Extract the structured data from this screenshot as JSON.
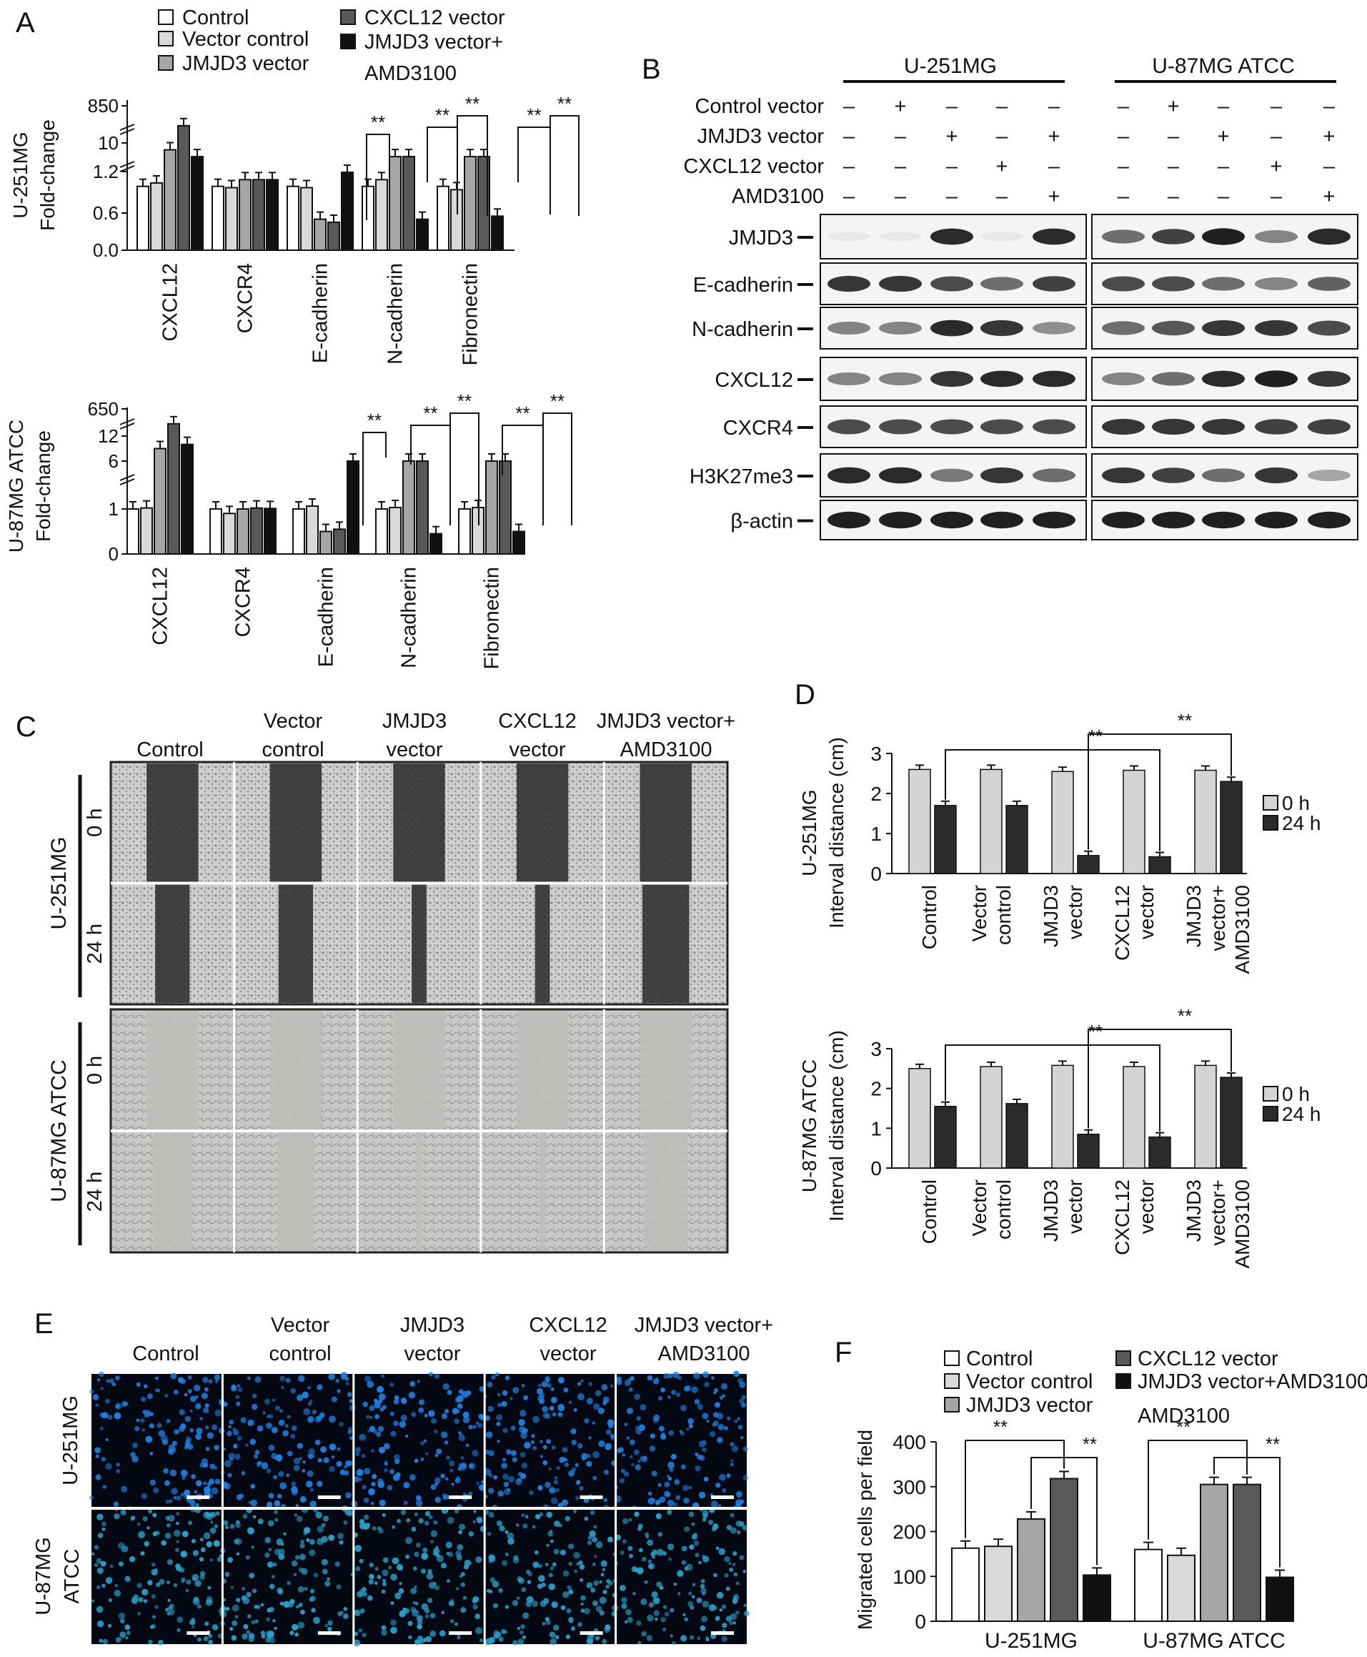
{
  "panels": {
    "A": "A",
    "B": "B",
    "C": "C",
    "D": "D",
    "E": "E",
    "F": "F"
  },
  "colors": {
    "control": "#ffffff",
    "vector_control": "#d9d9d9",
    "jmjd3_vector": "#a6a6a6",
    "cxcl12_vector": "#595959",
    "jmjd3_amd": "#111111",
    "blot_bg": "#f4f4f4",
    "band": "#141414",
    "nuclei_251": "#1f7fe0",
    "nuclei_87": "#2aa0c8"
  },
  "sig": "**",
  "legend_A": [
    "Control",
    "Vector control",
    "JMJD3 vector",
    "CXCL12 vector",
    "JMJD3 vector+",
    "AMD3100"
  ],
  "chart_data": [
    {
      "type": "bar",
      "panel": "A-top",
      "ylabel_lines": [
        "U-251MG",
        "Fold-change"
      ],
      "yticks": [
        "850",
        "10",
        "1.2",
        "1.2",
        "0.6",
        "0.0"
      ],
      "categories": [
        "CXCL12",
        "CXCR4",
        "E-cadherin",
        "N-cadherin",
        "Fibronectin"
      ],
      "series": [
        {
          "name": "Control",
          "values": [
            1,
            1,
            1,
            1,
            1
          ]
        },
        {
          "name": "Vector control",
          "values": [
            1.05,
            0.98,
            0.98,
            1.1,
            0.95
          ]
        },
        {
          "name": "JMJD3 vector",
          "values": [
            8,
            1.1,
            0.5,
            6,
            6
          ]
        },
        {
          "name": "CXCL12 vector",
          "values": [
            400,
            1.1,
            0.45,
            6,
            6
          ]
        },
        {
          "name": "JMJD3 vector+AMD3100",
          "values": [
            6,
            1.1,
            1.4,
            0.5,
            0.55
          ]
        }
      ]
    },
    {
      "type": "bar",
      "panel": "A-bottom",
      "ylabel_lines": [
        "U-87MG ATCC",
        "Fold-change"
      ],
      "yticks": [
        "650",
        "12",
        "6",
        "1",
        "0"
      ],
      "categories": [
        "CXCL12",
        "CXCR4",
        "E-cadherin",
        "N-cadherin",
        "Fibronectin"
      ],
      "series": [
        {
          "name": "Control",
          "values": [
            1,
            1,
            1,
            1,
            1
          ]
        },
        {
          "name": "Vector control",
          "values": [
            1.1,
            0.9,
            1.3,
            1.15,
            1.15
          ]
        },
        {
          "name": "JMJD3 vector",
          "values": [
            9,
            1.0,
            0.5,
            6,
            6
          ]
        },
        {
          "name": "CXCL12 vector",
          "values": [
            300,
            1.1,
            0.55,
            6,
            6
          ]
        },
        {
          "name": "JMJD3 vector+AMD3100",
          "values": [
            10,
            1.05,
            6,
            0.45,
            0.5
          ]
        }
      ]
    },
    {
      "type": "bar",
      "panel": "D-top",
      "ylabel_lines": [
        "U-251MG",
        "Interval distance (cm)"
      ],
      "yticks": [
        "3",
        "2",
        "1",
        "0"
      ],
      "ylim": [
        0,
        3
      ],
      "categories": [
        "Control",
        "Vector control",
        "JMJD3 vector",
        "CXCL12 vector",
        "JMJD3 vector+AMD3100"
      ],
      "cat_lines": [
        [
          "Control"
        ],
        [
          "Vector",
          "control"
        ],
        [
          "JMJD3",
          "vector"
        ],
        [
          "CXCL12",
          "vector"
        ],
        [
          "JMJD3",
          "vector+",
          "AMD3100"
        ]
      ],
      "series": [
        {
          "name": "0 h",
          "values": [
            2.6,
            2.6,
            2.55,
            2.58,
            2.58
          ]
        },
        {
          "name": "24 h",
          "values": [
            1.7,
            1.7,
            0.45,
            0.42,
            2.3
          ]
        }
      ]
    },
    {
      "type": "bar",
      "panel": "D-bottom",
      "ylabel_lines": [
        "U-87MG ATCC",
        "Interval distance (cm)"
      ],
      "yticks": [
        "3",
        "2",
        "1",
        "0"
      ],
      "ylim": [
        0,
        3
      ],
      "categories": [
        "Control",
        "Vector control",
        "JMJD3 vector",
        "CXCL12 vector",
        "JMJD3 vector+AMD3100"
      ],
      "cat_lines": [
        [
          "Control"
        ],
        [
          "Vector",
          "control"
        ],
        [
          "JMJD3",
          "vector"
        ],
        [
          "CXCL12",
          "vector"
        ],
        [
          "JMJD3",
          "vector+",
          "AMD3100"
        ]
      ],
      "series": [
        {
          "name": "0 h",
          "values": [
            2.5,
            2.55,
            2.58,
            2.55,
            2.58
          ]
        },
        {
          "name": "24 h",
          "values": [
            1.55,
            1.62,
            0.85,
            0.78,
            2.28
          ]
        }
      ]
    },
    {
      "type": "bar",
      "panel": "F",
      "ylabel": "Migrated cells per field",
      "yticks": [
        "400",
        "300",
        "200",
        "100",
        "0"
      ],
      "ylim": [
        0,
        400
      ],
      "categories": [
        "U-251MG",
        "U-87MG ATCC"
      ],
      "series": [
        {
          "name": "Control",
          "values": [
            163,
            160
          ]
        },
        {
          "name": "Vector control",
          "values": [
            167,
            147
          ]
        },
        {
          "name": "JMJD3 vector",
          "values": [
            228,
            305
          ]
        },
        {
          "name": "CXCL12 vector",
          "values": [
            318,
            305
          ]
        },
        {
          "name": "JMJD3 vector+AMD3100",
          "values": [
            103,
            98
          ]
        }
      ]
    }
  ],
  "panel_B": {
    "cell_lines": [
      "U-251MG",
      "U-87MG ATCC"
    ],
    "conditions": [
      {
        "label": "Control vector",
        "signs": [
          "–",
          "+",
          "–",
          "–",
          "–"
        ]
      },
      {
        "label": "JMJD3 vector",
        "signs": [
          "–",
          "–",
          "+",
          "–",
          "+"
        ]
      },
      {
        "label": "CXCL12 vector",
        "signs": [
          "–",
          "–",
          "–",
          "+",
          "–"
        ]
      },
      {
        "label": "AMD3100",
        "signs": [
          "–",
          "–",
          "–",
          "–",
          "+"
        ]
      }
    ],
    "proteins": [
      "JMJD3",
      "E-cadherin",
      "N-cadherin",
      "CXCL12",
      "CXCR4",
      "H3K27me3",
      "β-actin"
    ],
    "band_intensity": {
      "JMJD3": [
        [
          0.05,
          0.05,
          0.9,
          0.05,
          0.9
        ],
        [
          0.6,
          0.8,
          0.95,
          0.5,
          0.9
        ]
      ],
      "E-cadherin": [
        [
          0.85,
          0.85,
          0.75,
          0.6,
          0.8
        ],
        [
          0.75,
          0.75,
          0.6,
          0.5,
          0.65
        ]
      ],
      "N-cadherin": [
        [
          0.5,
          0.5,
          0.9,
          0.85,
          0.45
        ],
        [
          0.6,
          0.7,
          0.85,
          0.85,
          0.75
        ]
      ],
      "CXCL12": [
        [
          0.5,
          0.5,
          0.85,
          0.9,
          0.9
        ],
        [
          0.5,
          0.6,
          0.9,
          0.95,
          0.85
        ]
      ],
      "CXCR4": [
        [
          0.75,
          0.75,
          0.75,
          0.75,
          0.75
        ],
        [
          0.85,
          0.85,
          0.85,
          0.8,
          0.8
        ]
      ],
      "H3K27me3": [
        [
          0.9,
          0.9,
          0.55,
          0.85,
          0.6
        ],
        [
          0.85,
          0.8,
          0.6,
          0.85,
          0.35
        ]
      ],
      "β-actin": [
        [
          0.95,
          0.95,
          0.95,
          0.95,
          0.95
        ],
        [
          0.95,
          0.95,
          0.95,
          0.95,
          0.95
        ]
      ]
    }
  },
  "panel_C": {
    "columns": [
      [
        "Control"
      ],
      [
        "Vector",
        "control"
      ],
      [
        "JMJD3",
        "vector"
      ],
      [
        "CXCL12",
        "vector"
      ],
      [
        "JMJD3 vector+",
        "AMD3100"
      ]
    ],
    "cell_lines": [
      "U-251MG",
      "U-87MG ATCC"
    ],
    "times": [
      "0 h",
      "24 h"
    ]
  },
  "panel_E": {
    "columns": [
      [
        "Control"
      ],
      [
        "Vector",
        "control"
      ],
      [
        "JMJD3",
        "vector"
      ],
      [
        "CXCL12",
        "vector"
      ],
      [
        "JMJD3 vector+",
        "AMD3100"
      ]
    ],
    "cell_lines": [
      [
        "U-251MG"
      ],
      [
        "U-87MG",
        "ATCC"
      ]
    ]
  }
}
